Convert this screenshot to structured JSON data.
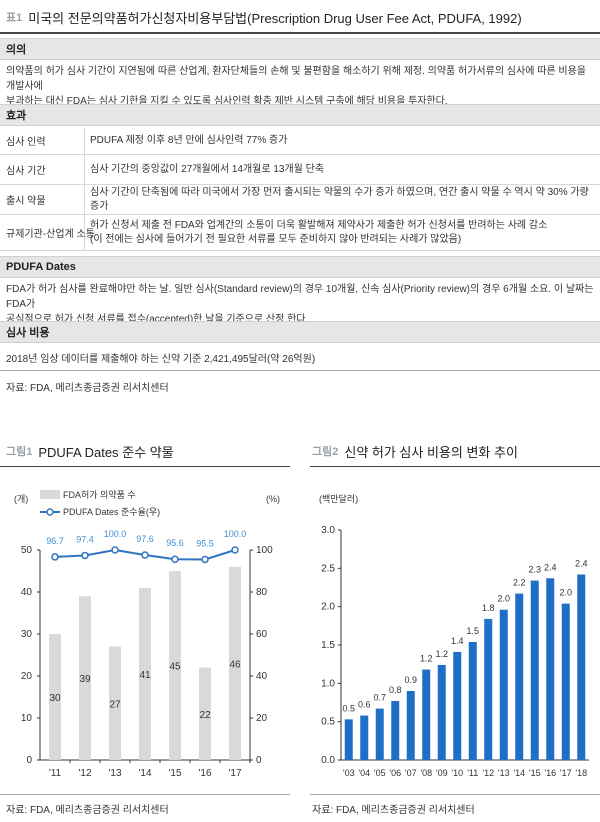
{
  "table": {
    "tag": "표1",
    "title": "미국의 전문의약품허가신청자비용부담법(Prescription Drug User Fee Act, PDUFA, 1992)",
    "purpose_header": "의의",
    "purpose_lines": [
      "의약품의 허가 심사 기간이 지연됨에 따른 산업계, 환자단체들의 손해 및 불편함을 해소하기 위해 제정. 의약품 허가서류의 심사에 따른 비용을 개발사에",
      "부과하는 대신 FDA는 심사 기한을 지킬 수 있도록 심사인력 확충 제반 시스템 구축에 해당 비용을 투자한다."
    ],
    "effects_header": "효과",
    "effects": [
      {
        "label": "심사 인력",
        "lines": [
          "PDUFA 제정 이후 8년 만에 심사인력 77% 증가"
        ]
      },
      {
        "label": "심사 기간",
        "lines": [
          "심사 기간의 중앙값이 27개월에서 14개월로 13개월 단축"
        ]
      },
      {
        "label": "출시 약물",
        "lines": [
          "심사 기간이 단축됨에 따라 미국에서 가장 먼저 출시되는 약물의 수가 증가 하였으며, 연간 출시 약물 수 역시 약 30% 가량 증가"
        ]
      },
      {
        "label": "규제기관-산업계 소통",
        "lines": [
          "허가 신청서 제출 전 FDA와 업계간의 소통이 더욱 활발해져 제약사가 제출한 허가 신청서를 반려하는 사례 감소",
          "(이 전에는 심사에 들어가기 전 필요한 서류를 모두 준비하지 않아 반려되는 사례가 많았음)"
        ]
      }
    ],
    "dates_header": "PDUFA Dates",
    "dates_lines": [
      "FDA가 허가 심사를 완료해야만 하는 날. 일반 심사(Standard review)의 경우 10개월, 신속 심사(Priority review)의 경우 6개월 소요. 이 날짜는 FDA가",
      "공식적으로 허가 신청 서류를 접수(accepted)한 날을 기준으로 산정 한다."
    ],
    "cost_header": "심사 비용",
    "cost_line": "2018년 임상 데이터를 제출해야 하는 신약 기준 2,421,495달러(약 26억원)",
    "source": "자료: FDA, 메리츠종금증권 리서치센터"
  },
  "figure1": {
    "tag": "그림1",
    "title": "PDUFA Dates 준수 약물",
    "source": "자료: FDA, 메리츠종금증권 리서치센터"
  },
  "figure2": {
    "tag": "그림2",
    "title": "신약 허가 심사 비용의 변화 추이",
    "source": "자료: FDA, 메리츠종금증권 리서치센터"
  },
  "colors": {
    "bar_gray": "#d9d9d9",
    "line_blue": "#2f74c0",
    "bar_blue": "#1f6fc6",
    "label_blue": "#3d8fd6"
  },
  "chart_data": [
    {
      "type": "bar+line",
      "categories": [
        "'11",
        "'12",
        "'13",
        "'14",
        "'15",
        "'16",
        "'17"
      ],
      "series": [
        {
          "name": "FDA허가 의약품 수",
          "type": "bar",
          "axis": "left",
          "values": [
            30,
            39,
            27,
            41,
            45,
            22,
            46
          ]
        },
        {
          "name": "PDUFA Dates 준수율(우)",
          "type": "line",
          "axis": "right",
          "values": [
            96.7,
            97.4,
            100.0,
            97.6,
            95.6,
            95.5,
            100.0
          ]
        }
      ],
      "value_labels": {
        "bar": [
          "30",
          "39",
          "27",
          "41",
          "45",
          "22",
          "46"
        ],
        "line": [
          "96.7",
          "97.4",
          "100.0",
          "97.6",
          "95.6",
          "95.5",
          "100.0"
        ]
      },
      "ylabel_left": "(개)",
      "ylabel_right": "(%)",
      "ylim_left": [
        0,
        50
      ],
      "ylim_right": [
        0,
        100
      ],
      "yticks_left": [
        "0",
        "10",
        "20",
        "30",
        "40",
        "50"
      ],
      "yticks_right": [
        "0",
        "20",
        "40",
        "60",
        "80",
        "100"
      ],
      "legend": "top-left",
      "grid": false
    },
    {
      "type": "bar",
      "categories": [
        "'03",
        "'04",
        "'05",
        "'06",
        "'07",
        "'08",
        "'09",
        "'10",
        "'11",
        "'12",
        "'13",
        "'14",
        "'15",
        "'16",
        "'17",
        "'18"
      ],
      "values": [
        0.53,
        0.58,
        0.67,
        0.77,
        0.9,
        1.18,
        1.24,
        1.41,
        1.54,
        1.84,
        1.96,
        2.17,
        2.34,
        2.37,
        2.04,
        2.42
      ],
      "value_labels": [
        "0.5",
        "0.6",
        "0.7",
        "0.8",
        "0.9",
        "1.2",
        "1.2",
        "1.4",
        "1.5",
        "1.8",
        "2.0",
        "2.2",
        "2.3",
        "2.4",
        "2.0",
        "2.4"
      ],
      "ylabel": "(백만달러)",
      "ylim": [
        0,
        3.0
      ],
      "yticks": [
        "0.0",
        "0.5",
        "1.0",
        "1.5",
        "2.0",
        "2.5",
        "3.0"
      ],
      "grid": false
    }
  ]
}
